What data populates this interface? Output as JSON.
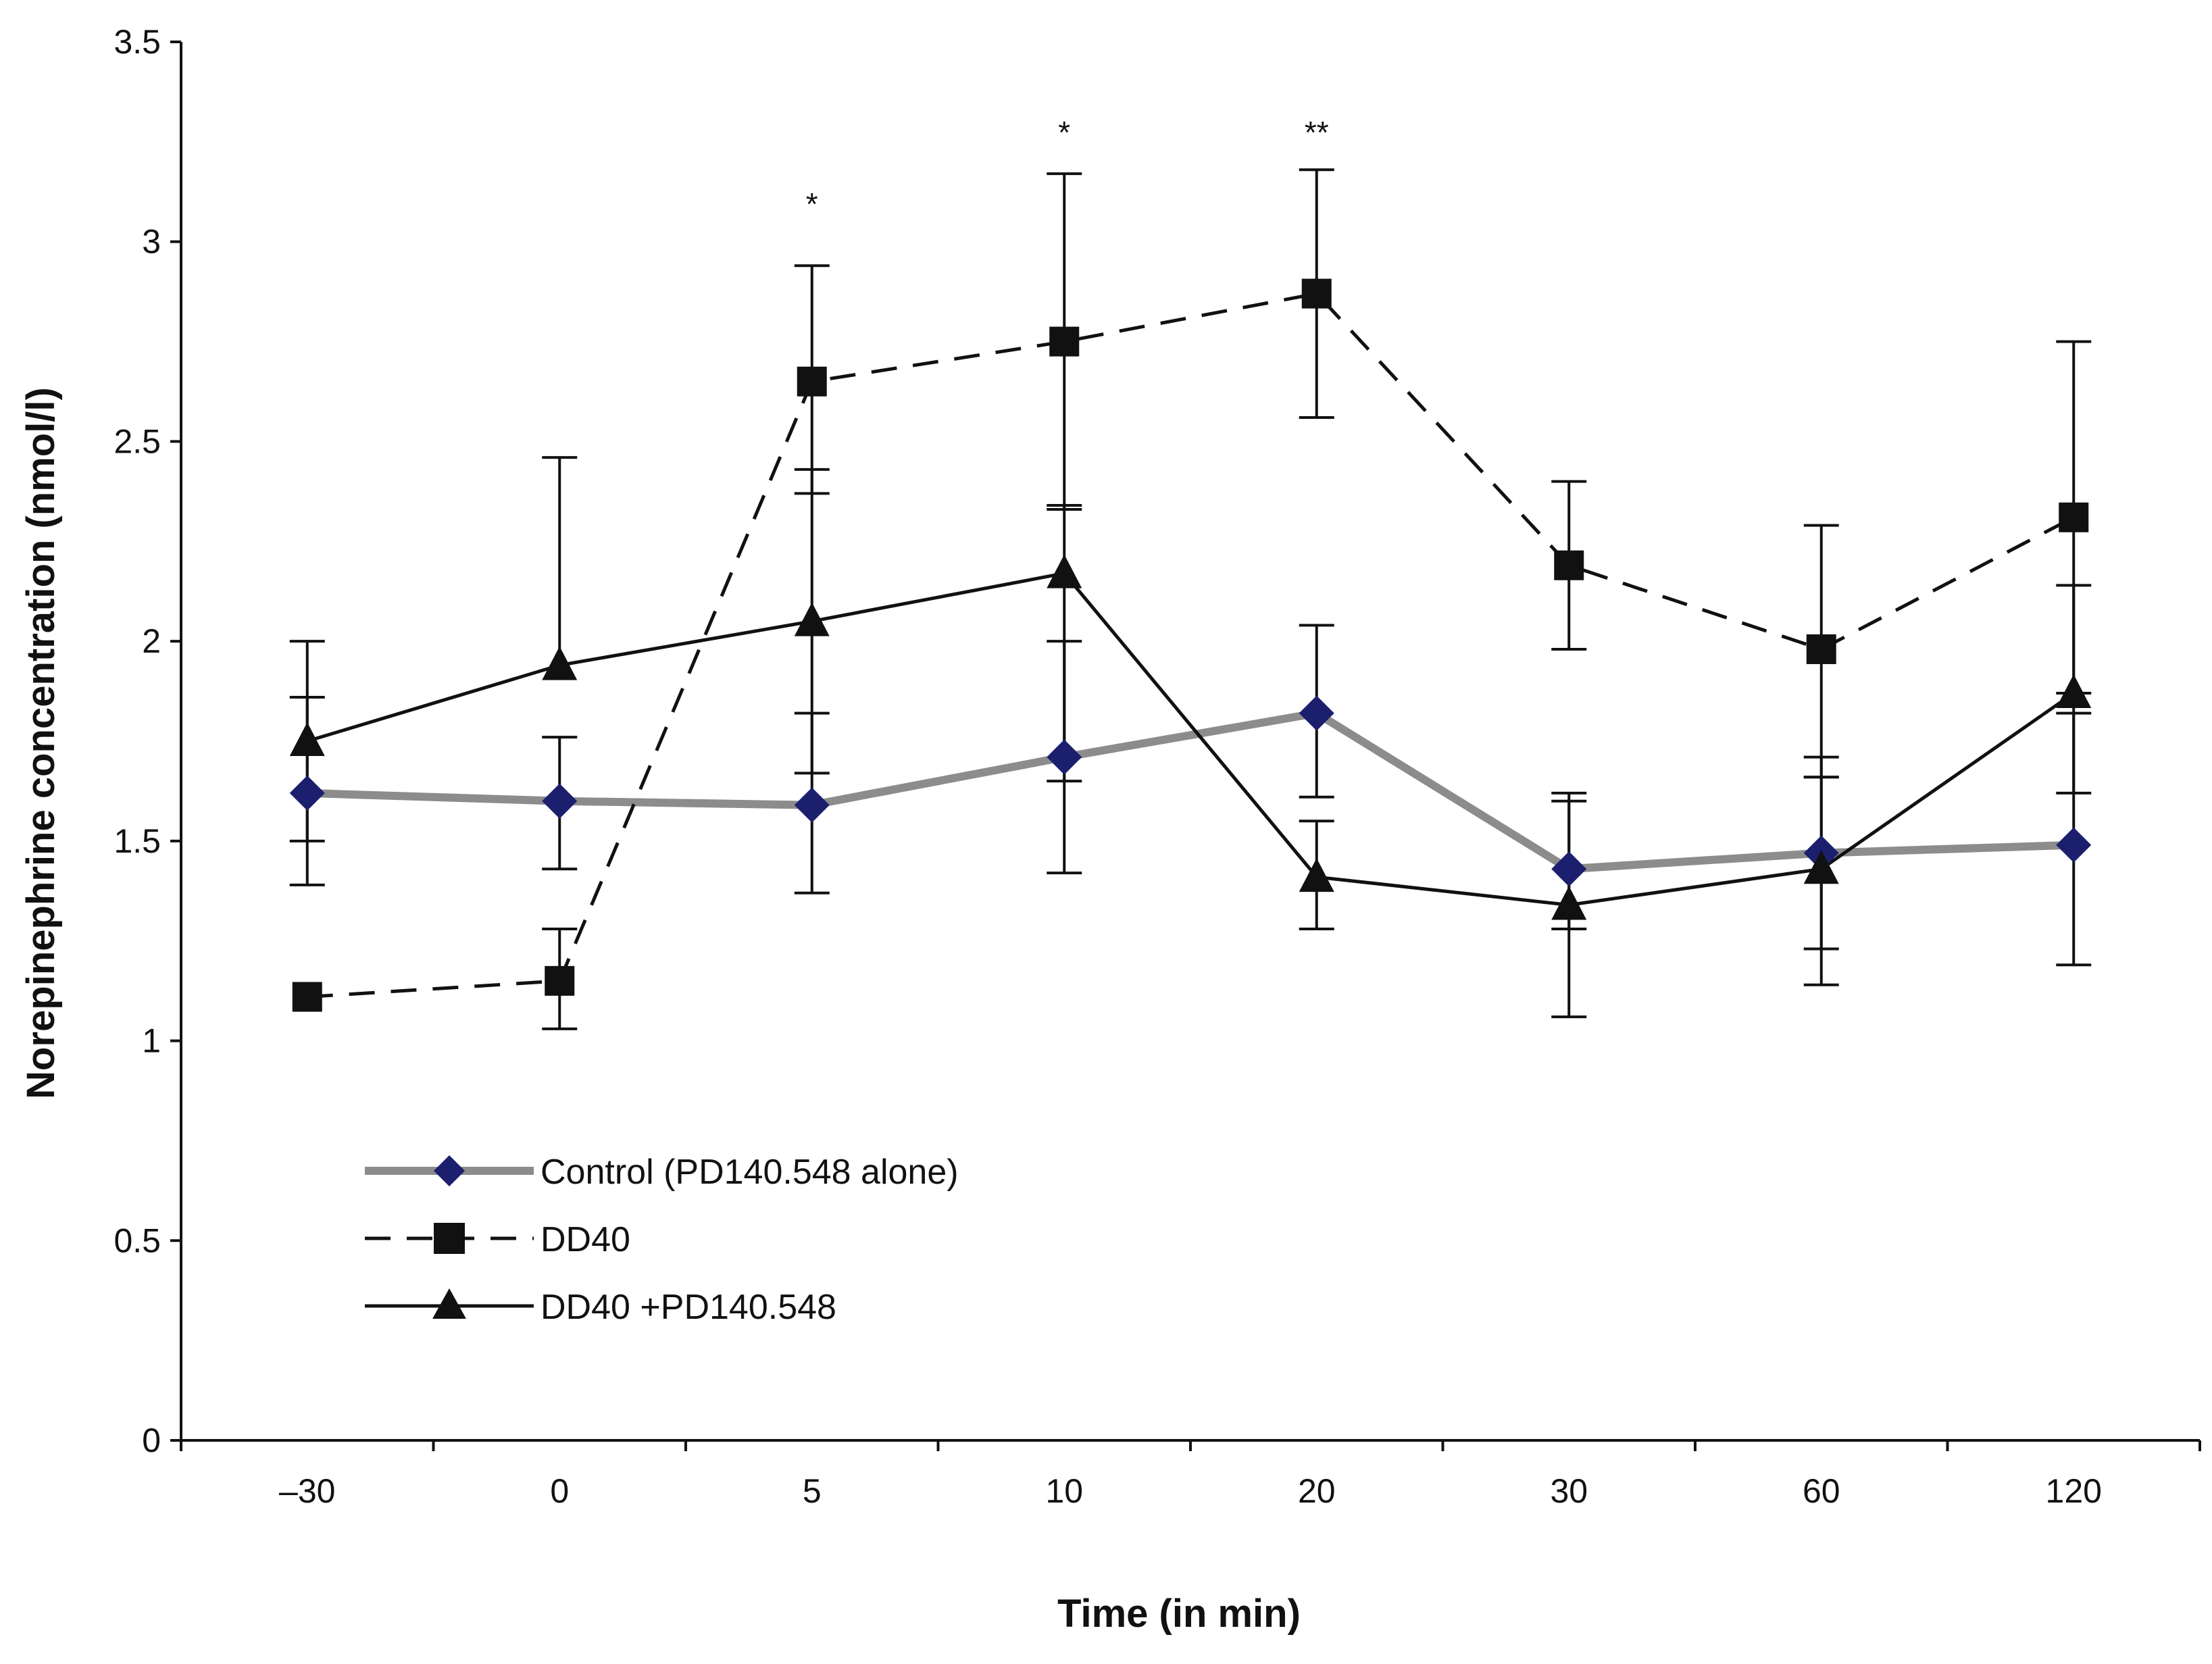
{
  "chart_data": {
    "type": "line",
    "title": "",
    "xlabel": "Time (in min)",
    "ylabel": "Norepinephrine concentration (nmol/l)",
    "categories": [
      "–30",
      "0",
      "5",
      "10",
      "20",
      "30",
      "60",
      "120"
    ],
    "ylim": [
      0,
      3.5
    ],
    "yticks": [
      "0",
      "0.5",
      "1",
      "1.5",
      "2",
      "2.5",
      "3",
      "3.5"
    ],
    "grid": false,
    "legend_position": "lower-left",
    "significance": [
      {
        "category": "5",
        "label": "*"
      },
      {
        "category": "10",
        "label": "*"
      },
      {
        "category": "20",
        "label": "**"
      }
    ],
    "series": [
      {
        "name": "Control (PD140.548 alone)",
        "marker": "diamond",
        "line": "solid-gray",
        "values": [
          1.62,
          1.6,
          1.59,
          1.71,
          1.82,
          1.43,
          1.47,
          1.49
        ],
        "err_low": [
          1.39,
          1.43,
          1.37,
          1.42,
          1.61,
          1.28,
          1.14,
          1.19
        ],
        "err_high": [
          1.86,
          1.76,
          1.82,
          2.0,
          2.04,
          1.6,
          1.71,
          1.82
        ]
      },
      {
        "name": "DD40",
        "marker": "square",
        "line": "dashed",
        "values": [
          1.11,
          1.15,
          2.65,
          2.75,
          2.87,
          2.19,
          1.98,
          2.31
        ],
        "err_low": [
          null,
          1.03,
          2.37,
          2.33,
          2.56,
          1.98,
          1.66,
          1.87
        ],
        "err_high": [
          null,
          1.28,
          2.94,
          3.17,
          3.18,
          2.4,
          2.29,
          2.75
        ]
      },
      {
        "name": "DD40 +PD140.548",
        "marker": "triangle",
        "line": "solid-black",
        "values": [
          1.75,
          1.94,
          2.05,
          2.17,
          1.41,
          1.34,
          1.43,
          1.87
        ],
        "err_low": [
          1.5,
          null,
          1.67,
          1.65,
          1.28,
          1.06,
          1.23,
          1.62
        ],
        "err_high": [
          2.0,
          2.46,
          2.43,
          2.34,
          1.55,
          1.62,
          1.66,
          2.14
        ]
      }
    ],
    "colors": {
      "control_line": "#8c8c8c",
      "control_marker": "#1c1f6e",
      "dd40": "#111111",
      "dd40_pd": "#111111",
      "axis": "#111111"
    }
  }
}
